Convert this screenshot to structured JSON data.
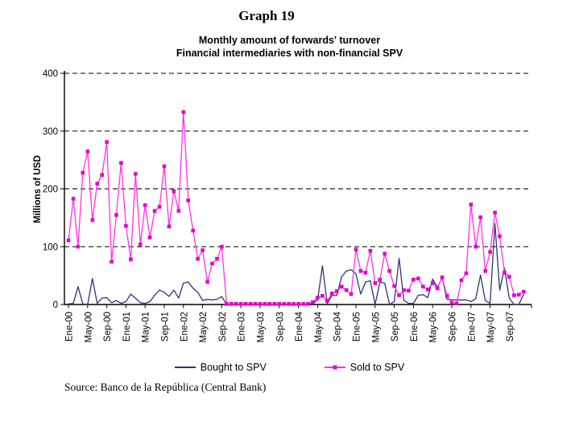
{
  "page_title": "Graph 19",
  "source": "Source: Banco de la República (Central Bank)",
  "colors": {
    "bought_line": "#333377",
    "sold_line": "#ff33e6",
    "sold_marker": "#e600cc",
    "axis": "#000000",
    "grid": "#000000",
    "background": "#ffffff"
  },
  "chart_data": {
    "type": "line",
    "title": "Monthly amount of forwards' turnover",
    "subtitle": "Financial intermediaries with non-financial SPV",
    "ylabel": "Millions of USD",
    "ylim": [
      0,
      400
    ],
    "yticks": [
      0,
      100,
      200,
      300,
      400
    ],
    "grid": "horizontal-dashed",
    "legend_position": "bottom",
    "x_unit": "month",
    "x_range": "Ene-00 to Dic-07",
    "xtick_interval": 4,
    "xtick_labels": [
      "Ene-00",
      "May-00",
      "Sep-00",
      "Ene-01",
      "May-01",
      "Sep-01",
      "Ene-02",
      "May-02",
      "Sep-02",
      "Ene-03",
      "May-03",
      "Sep-03",
      "Ene-04",
      "May-04",
      "Sep-04",
      "Ene-05",
      "May-05",
      "Sep-05",
      "Ene-06",
      "May-06",
      "Sep-06",
      "Ene-07",
      "May-07",
      "Sep-07"
    ],
    "series": [
      {
        "name": "Bought to SPV",
        "color": "#333377",
        "marker": "none",
        "values": [
          1,
          2,
          31,
          1,
          0,
          45,
          2,
          11,
          12,
          3,
          7,
          2,
          5,
          18,
          11,
          3,
          2,
          5,
          16,
          25,
          21,
          14,
          25,
          11,
          37,
          39,
          28,
          21,
          7,
          9,
          8,
          9,
          14,
          0,
          0,
          0,
          0,
          0,
          0,
          0,
          0,
          0,
          0,
          0,
          0,
          0,
          0,
          0,
          0,
          0,
          0,
          2,
          8,
          67,
          2,
          16,
          16,
          48,
          58,
          60,
          53,
          18,
          39,
          41,
          0,
          39,
          37,
          0,
          5,
          80,
          7,
          2,
          2,
          16,
          17,
          12,
          44,
          30,
          46,
          9,
          8,
          8,
          8,
          8,
          5,
          10,
          51,
          7,
          2,
          140,
          25,
          63,
          11,
          0,
          0,
          18
        ]
      },
      {
        "name": "Sold to SPV",
        "color": "#ff33e6",
        "marker": "square",
        "marker_color": "#e600cc",
        "values": [
          111,
          183,
          100,
          228,
          265,
          146,
          209,
          224,
          281,
          74,
          155,
          245,
          136,
          78,
          226,
          104,
          172,
          116,
          162,
          169,
          239,
          135,
          196,
          162,
          333,
          180,
          128,
          79,
          94,
          39,
          71,
          79,
          100,
          1,
          1,
          1,
          1,
          1,
          1,
          1,
          1,
          1,
          1,
          1,
          1,
          1,
          1,
          1,
          1,
          1,
          1,
          4,
          12,
          15,
          6,
          19,
          23,
          31,
          25,
          18,
          95,
          58,
          55,
          93,
          37,
          43,
          88,
          58,
          32,
          16,
          25,
          24,
          43,
          45,
          31,
          26,
          37,
          28,
          47,
          15,
          3,
          2,
          42,
          54,
          173,
          100,
          151,
          58,
          91,
          159,
          118,
          55,
          48,
          16,
          17,
          22
        ]
      }
    ]
  }
}
